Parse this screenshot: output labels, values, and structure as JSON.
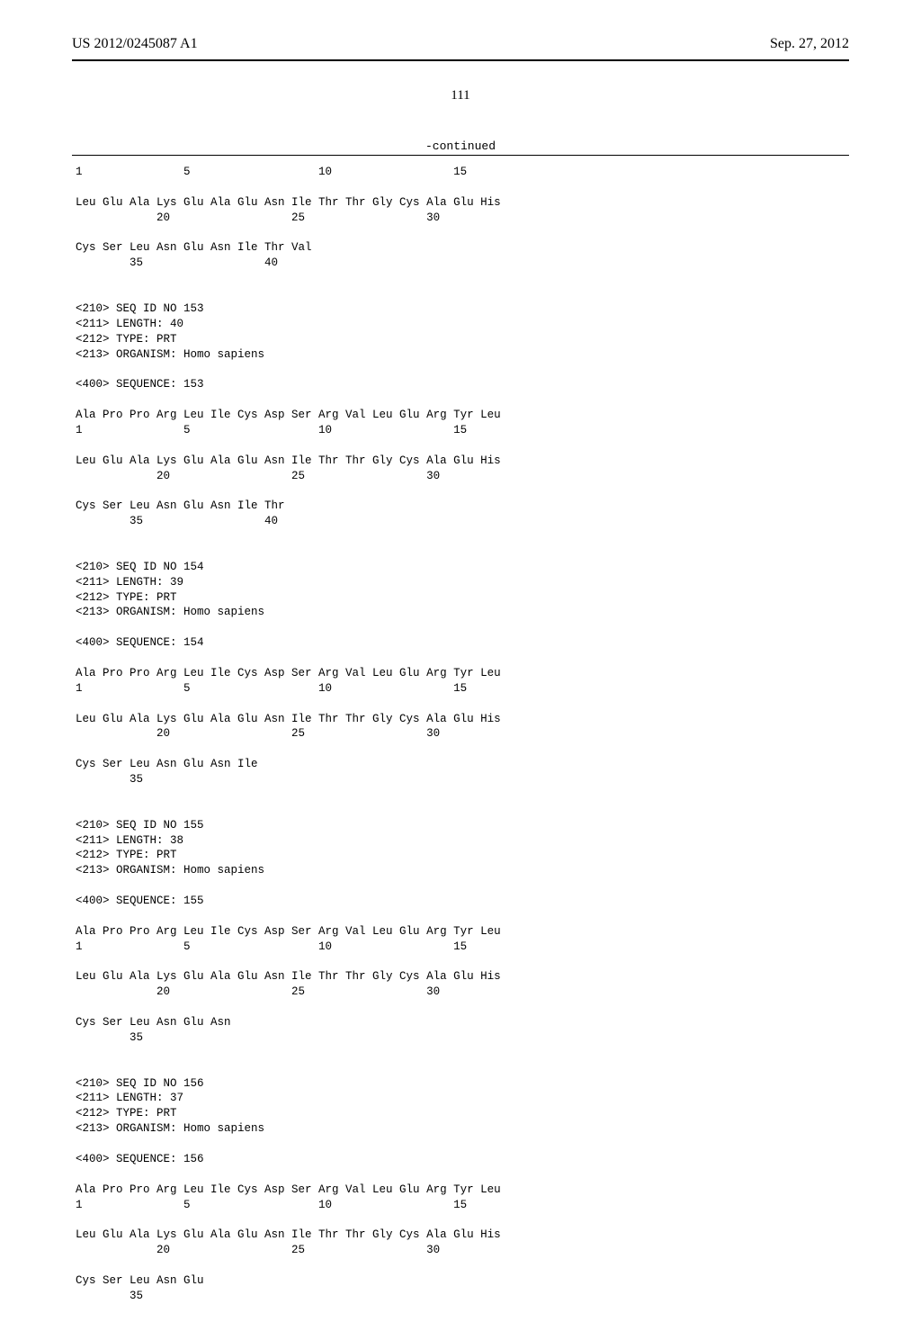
{
  "header": {
    "publication_number": "US 2012/0245087 A1",
    "publication_date": "Sep. 27, 2012"
  },
  "page_number": "111",
  "continued_label": "-continued",
  "sequence_text": "1               5                   10                  15\n\nLeu Glu Ala Lys Glu Ala Glu Asn Ile Thr Thr Gly Cys Ala Glu His\n            20                  25                  30\n\nCys Ser Leu Asn Glu Asn Ile Thr Val\n        35                  40\n\n\n<210> SEQ ID NO 153\n<211> LENGTH: 40\n<212> TYPE: PRT\n<213> ORGANISM: Homo sapiens\n\n<400> SEQUENCE: 153\n\nAla Pro Pro Arg Leu Ile Cys Asp Ser Arg Val Leu Glu Arg Tyr Leu\n1               5                   10                  15\n\nLeu Glu Ala Lys Glu Ala Glu Asn Ile Thr Thr Gly Cys Ala Glu His\n            20                  25                  30\n\nCys Ser Leu Asn Glu Asn Ile Thr\n        35                  40\n\n\n<210> SEQ ID NO 154\n<211> LENGTH: 39\n<212> TYPE: PRT\n<213> ORGANISM: Homo sapiens\n\n<400> SEQUENCE: 154\n\nAla Pro Pro Arg Leu Ile Cys Asp Ser Arg Val Leu Glu Arg Tyr Leu\n1               5                   10                  15\n\nLeu Glu Ala Lys Glu Ala Glu Asn Ile Thr Thr Gly Cys Ala Glu His\n            20                  25                  30\n\nCys Ser Leu Asn Glu Asn Ile\n        35\n\n\n<210> SEQ ID NO 155\n<211> LENGTH: 38\n<212> TYPE: PRT\n<213> ORGANISM: Homo sapiens\n\n<400> SEQUENCE: 155\n\nAla Pro Pro Arg Leu Ile Cys Asp Ser Arg Val Leu Glu Arg Tyr Leu\n1               5                   10                  15\n\nLeu Glu Ala Lys Glu Ala Glu Asn Ile Thr Thr Gly Cys Ala Glu His\n            20                  25                  30\n\nCys Ser Leu Asn Glu Asn\n        35\n\n\n<210> SEQ ID NO 156\n<211> LENGTH: 37\n<212> TYPE: PRT\n<213> ORGANISM: Homo sapiens\n\n<400> SEQUENCE: 156\n\nAla Pro Pro Arg Leu Ile Cys Asp Ser Arg Val Leu Glu Arg Tyr Leu\n1               5                   10                  15\n\nLeu Glu Ala Lys Glu Ala Glu Asn Ile Thr Thr Gly Cys Ala Glu His\n            20                  25                  30\n\nCys Ser Leu Asn Glu\n        35"
}
